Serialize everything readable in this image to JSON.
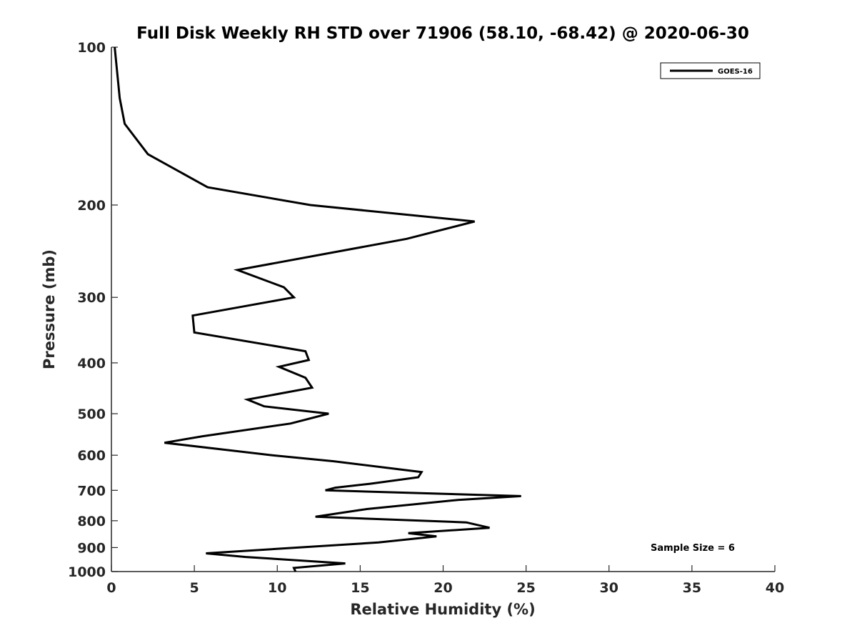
{
  "chart_data": {
    "type": "line",
    "title": "Full Disk Weekly RH STD over 71906 (58.10, -68.42) @ 2020-06-30",
    "xlabel": "Relative Humidity (%)",
    "ylabel": "Pressure (mb)",
    "xlim": [
      0,
      40
    ],
    "ylim": [
      1000,
      100
    ],
    "y_scale": "log",
    "grid": false,
    "legend_position": "top-right",
    "x_ticks": [
      0,
      5,
      10,
      15,
      20,
      25,
      30,
      35,
      40
    ],
    "x_tick_labels": [
      "0",
      "5",
      "10",
      "15",
      "20",
      "25",
      "30",
      "35",
      "40"
    ],
    "y_ticks": [
      100,
      200,
      300,
      400,
      500,
      600,
      700,
      800,
      900,
      1000
    ],
    "y_tick_labels": [
      "100",
      "200",
      "300",
      "400",
      "500",
      "600",
      "700",
      "800",
      "900",
      "1000"
    ],
    "series": [
      {
        "name": "GOES-16",
        "color": "#000000",
        "points": [
          [
            0.2,
            100
          ],
          [
            0.5,
            125
          ],
          [
            0.8,
            140
          ],
          [
            2.2,
            160
          ],
          [
            5.8,
            185
          ],
          [
            12.0,
            200
          ],
          [
            21.9,
            215
          ],
          [
            17.8,
            232
          ],
          [
            7.6,
            266
          ],
          [
            10.4,
            287
          ],
          [
            11.0,
            300
          ],
          [
            4.9,
            325
          ],
          [
            5.0,
            350
          ],
          [
            11.7,
            380
          ],
          [
            11.9,
            395
          ],
          [
            10.1,
            407
          ],
          [
            11.7,
            427
          ],
          [
            12.1,
            446
          ],
          [
            8.2,
            470
          ],
          [
            9.2,
            484
          ],
          [
            13.1,
            500
          ],
          [
            10.8,
            522
          ],
          [
            5.5,
            552
          ],
          [
            3.2,
            568
          ],
          [
            9.7,
            600
          ],
          [
            13.4,
            616
          ],
          [
            18.7,
            646
          ],
          [
            18.5,
            661
          ],
          [
            15.6,
            680
          ],
          [
            13.5,
            692
          ],
          [
            12.9,
            700
          ],
          [
            24.7,
            718
          ],
          [
            20.9,
            730
          ],
          [
            15.4,
            760
          ],
          [
            12.3,
            786
          ],
          [
            21.4,
            806
          ],
          [
            22.8,
            825
          ],
          [
            17.9,
            845
          ],
          [
            19.6,
            857
          ],
          [
            16.1,
            880
          ],
          [
            5.7,
            923
          ],
          [
            8.1,
            938
          ],
          [
            14.1,
            965
          ],
          [
            11.0,
            984
          ],
          [
            11.1,
            1000
          ]
        ]
      }
    ],
    "annotations": [
      "Sample Size = 6"
    ]
  }
}
